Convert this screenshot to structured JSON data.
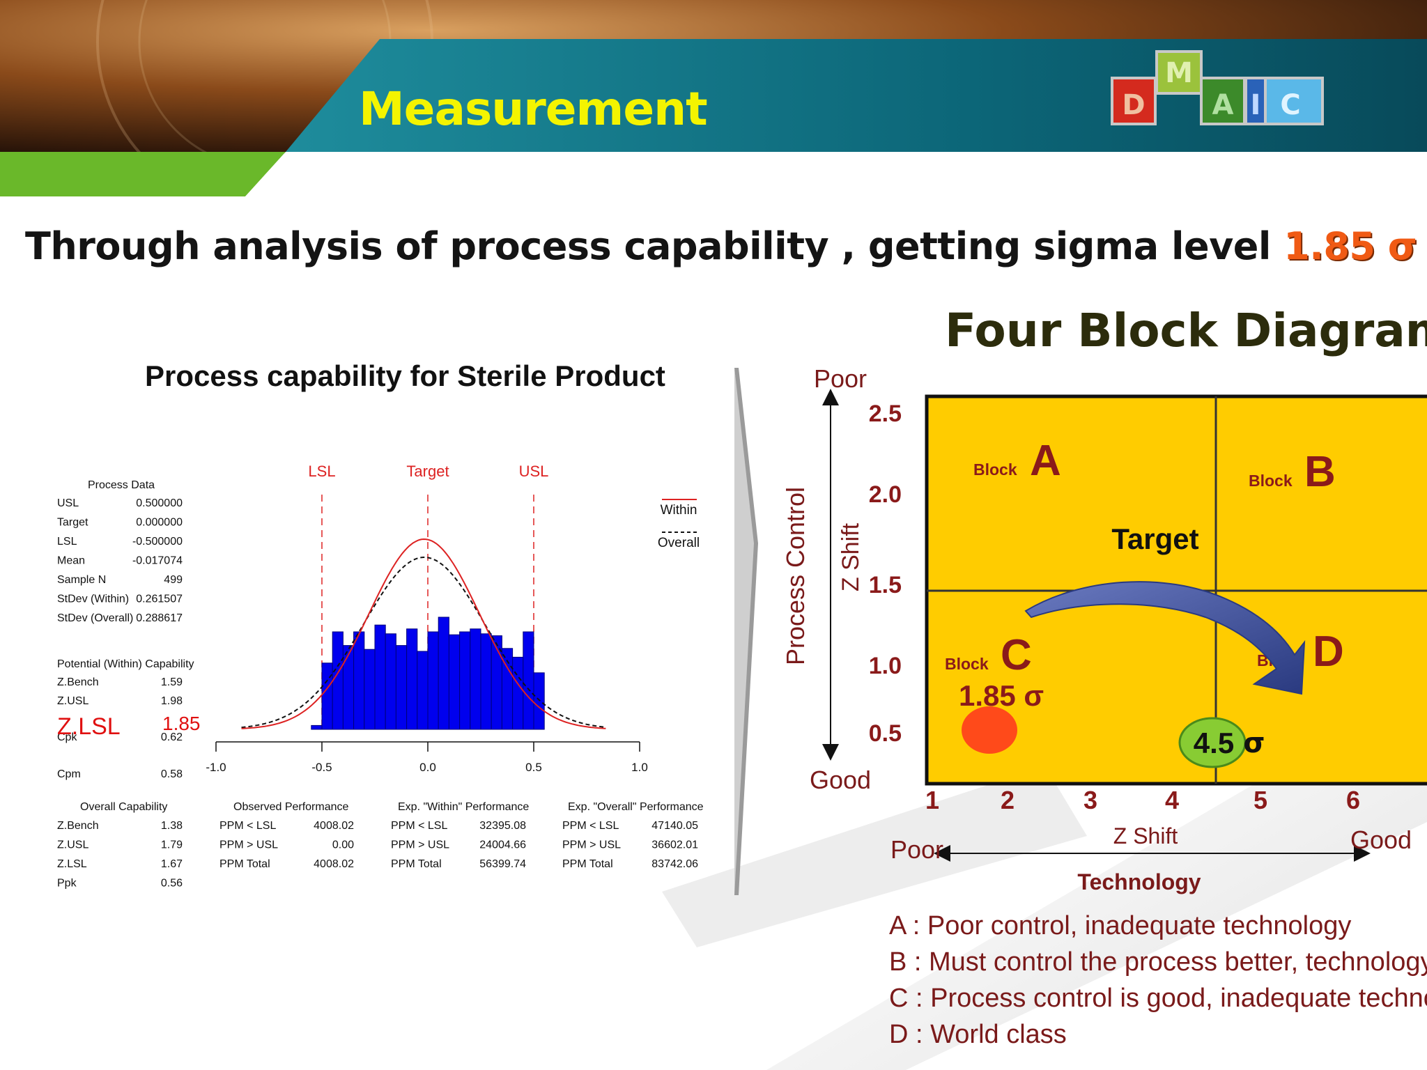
{
  "header": {
    "title": "Measurement",
    "logo_letters": [
      "D",
      "M",
      "A",
      "I",
      "C"
    ],
    "logo_colors": {
      "D": "#d42a1e",
      "M": "#9bc23c",
      "A": "#3c8a2a",
      "I": "#2a62b8",
      "C": "#5ab8e8"
    }
  },
  "subtitle": {
    "text": "Through analysis of process capability , getting sigma level",
    "sigma_value": "1.85 σ"
  },
  "capability": {
    "title": "Process capability for Sterile Product",
    "spec_labels": {
      "lsl": "LSL",
      "target": "Target",
      "usl": "USL"
    },
    "legend": {
      "within": "Within",
      "overall": "Overall"
    },
    "process_data": {
      "heading": "Process Data",
      "rows": [
        {
          "label": "USL",
          "value": "0.500000"
        },
        {
          "label": "Target",
          "value": "0.000000"
        },
        {
          "label": "LSL",
          "value": "-0.500000"
        },
        {
          "label": "Mean",
          "value": "-0.017074"
        },
        {
          "label": "Sample N",
          "value": "499"
        },
        {
          "label": "StDev (Within)",
          "value": "0.261507"
        },
        {
          "label": "StDev (Overall)",
          "value": "0.288617"
        }
      ]
    },
    "potential": {
      "heading": "Potential (Within) Capability",
      "rows": [
        {
          "label": "Z.Bench",
          "value": "1.59"
        },
        {
          "label": "Z.USL",
          "value": "1.98"
        },
        {
          "label": "Cpk",
          "value": "0.62"
        },
        {
          "label": "Cpm",
          "value": "0.58"
        }
      ],
      "highlight": {
        "label": "Z.LSL",
        "value": "1.85"
      }
    },
    "overall": {
      "heading": "Overall Capability",
      "rows": [
        {
          "label": "Z.Bench",
          "value": "1.38"
        },
        {
          "label": "Z.USL",
          "value": "1.79"
        },
        {
          "label": "Z.LSL",
          "value": "1.67"
        },
        {
          "label": "Ppk",
          "value": "0.56"
        }
      ]
    },
    "observed": {
      "heading": "Observed Performance",
      "rows": [
        {
          "label": "PPM < LSL",
          "value": "4008.02"
        },
        {
          "label": "PPM > USL",
          "value": "0.00"
        },
        {
          "label": "PPM Total",
          "value": "4008.02"
        }
      ]
    },
    "exp_within": {
      "heading": "Exp. \"Within\" Performance",
      "rows": [
        {
          "label": "PPM < LSL",
          "value": "32395.08"
        },
        {
          "label": "PPM > USL",
          "value": "24004.66"
        },
        {
          "label": "PPM Total",
          "value": "56399.74"
        }
      ]
    },
    "exp_overall": {
      "heading": "Exp. \"Overall\" Performance",
      "rows": [
        {
          "label": "PPM < LSL",
          "value": "47140.05"
        },
        {
          "label": "PPM > USL",
          "value": "36602.01"
        },
        {
          "label": "PPM Total",
          "value": "83742.06"
        }
      ]
    },
    "chart_data": {
      "type": "bar",
      "x_ticks": [
        -1.0,
        -0.5,
        0.0,
        0.5,
        1.0
      ],
      "x_tick_labels": [
        "-1.0",
        "-0.5",
        "0.0",
        "0.5",
        "1.0"
      ],
      "xlim": [
        -1.0,
        1.0
      ],
      "spec_limits": {
        "lsl": -0.5,
        "target": 0.0,
        "usl": 0.5
      },
      "bin_edges": [
        -0.55,
        -0.5,
        -0.45,
        -0.4,
        -0.35,
        -0.3,
        -0.25,
        -0.2,
        -0.15,
        -0.1,
        -0.05,
        0.0,
        0.05,
        0.1,
        0.15,
        0.2,
        0.25,
        0.3,
        0.35,
        0.4,
        0.45,
        0.5,
        0.55
      ],
      "bar_heights_relative": [
        0.04,
        0.68,
        1.0,
        0.86,
        1.0,
        0.82,
        1.07,
        0.98,
        0.86,
        1.03,
        0.8,
        1.0,
        1.15,
        0.97,
        1.0,
        1.03,
        0.98,
        0.96,
        0.83,
        0.74,
        1.0,
        0.58
      ],
      "curves": {
        "within": {
          "color": "#dd2222",
          "dash": "solid",
          "mean": -0.017074,
          "stdev": 0.261507
        },
        "overall": {
          "color": "#111111",
          "dash": "dashed",
          "mean": -0.017074,
          "stdev": 0.288617
        }
      },
      "bar_color": "#0000ee",
      "grid": false
    }
  },
  "fourblock": {
    "title": "Four Block Diagram",
    "y_axis": {
      "top": "Poor",
      "bottom": "Good",
      "label_outer": "Process Control",
      "label_inner": "Z Shift",
      "ticks": [
        "2.5",
        "2.0",
        "1.5",
        "1.0",
        "0.5"
      ]
    },
    "x_axis": {
      "left": "Poor",
      "right": "Good",
      "label": "Z Shift",
      "title": "Technology",
      "ticks": [
        "1",
        "2",
        "3",
        "4",
        "5",
        "6"
      ]
    },
    "block_word": "Block",
    "blocks": [
      "A",
      "B",
      "C",
      "D"
    ],
    "target": "Target",
    "current_sigma": "1.85 σ",
    "target_sigma_num": "4.5",
    "target_sigma_sym": "σ",
    "box_color": "#ffcc00",
    "current_dot_color": "#ff4a1a",
    "target_dot_color": "#88cc33",
    "arrow_color": "#4a5aa0"
  },
  "definitions": [
    "A : Poor control, inadequate technology",
    "B : Must control the process better, technology is fine",
    "C : Process control is good, inadequate technology",
    "D : World class"
  ]
}
